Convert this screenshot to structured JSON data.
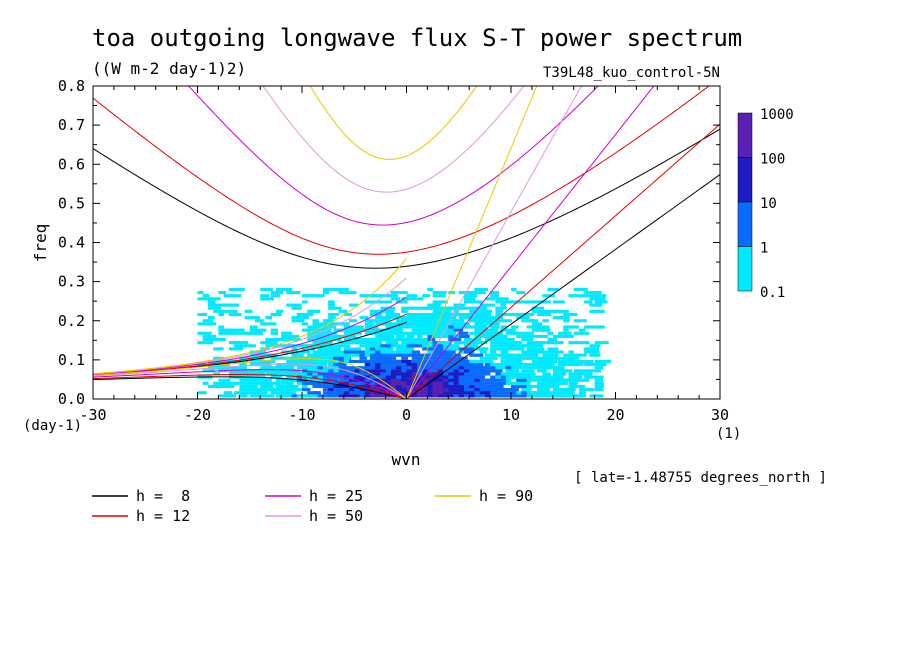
{
  "chart_data": {
    "type": "heatmap",
    "title": "toa outgoing longwave flux S-T power spectrum",
    "subtitle": "((W m-2 day-1)2)",
    "run_label": "T39L48_kuo_control-5N",
    "xlabel": "wvn",
    "ylabel": "freq",
    "x_unit": "(1)",
    "y_unit": "(day-1)",
    "xlim": [
      -30,
      30
    ],
    "ylim": [
      0,
      0.8
    ],
    "xticks": [
      "-30",
      "-20",
      "-10",
      "0",
      "10",
      "20",
      "30"
    ],
    "yticks": [
      "0.0",
      "0.1",
      "0.2",
      "0.3",
      "0.4",
      "0.5",
      "0.6",
      "0.7",
      "0.8"
    ],
    "footnote": "[ lat=-1.48755 degrees_north ]",
    "colorbar": {
      "labels": [
        "1000",
        "100",
        "10",
        "1",
        "0.1"
      ],
      "colors": [
        "#5a1fb4",
        "#1c1cc0",
        "#0a6cff",
        "#00eaff"
      ]
    },
    "series": [
      {
        "name": "h =  8",
        "h": 8,
        "color": "#000000"
      },
      {
        "name": "h = 12",
        "h": 12,
        "color": "#e00000"
      },
      {
        "name": "h = 25",
        "h": 25,
        "color": "#cc00cc"
      },
      {
        "name": "h = 50",
        "h": 50,
        "color": "#dd99dd"
      },
      {
        "name": "h = 90",
        "h": 90,
        "color": "#e8c800"
      }
    ]
  }
}
